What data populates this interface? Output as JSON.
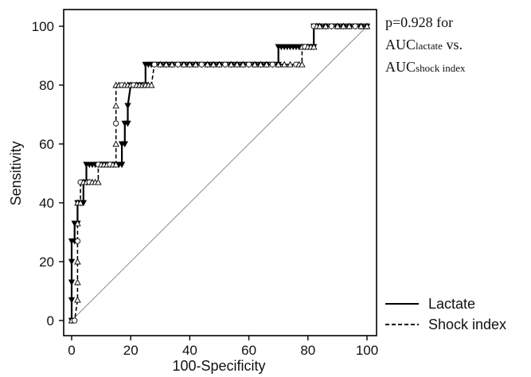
{
  "chart_data": {
    "type": "line",
    "title": "",
    "xlabel": "100-Specificity",
    "ylabel": "Sensitivity",
    "xlim": [
      0,
      100
    ],
    "ylim": [
      0,
      100
    ],
    "x_ticks": [
      "0",
      "20",
      "40",
      "60",
      "80",
      "100"
    ],
    "y_ticks": [
      "0",
      "20",
      "40",
      "60",
      "80",
      "100"
    ],
    "grid": false,
    "legend_position": "bottom-right",
    "annotation": {
      "line1": "p=0.928 for",
      "line2_main": "AUC",
      "line2_sub": "lactate",
      "line2_tail": " vs.",
      "line3_main": "AUC",
      "line3_sub": "shock index"
    },
    "reference_line": {
      "x": [
        0,
        100
      ],
      "y": [
        0,
        100
      ]
    },
    "series": [
      {
        "name": "Lactate",
        "line_style": "solid",
        "marker": "filled-triangle-down",
        "x": [
          0,
          0,
          0,
          0,
          0,
          1,
          1,
          2,
          2,
          3,
          3,
          4,
          4,
          5,
          5,
          6,
          7,
          8,
          9,
          10,
          11,
          12,
          13,
          14,
          15,
          16,
          17,
          17,
          18,
          18,
          19,
          19,
          20,
          21,
          22,
          23,
          24,
          25,
          25,
          26,
          27,
          28,
          30,
          32,
          34,
          36,
          38,
          40,
          42,
          44,
          46,
          48,
          50,
          52,
          54,
          56,
          58,
          60,
          62,
          64,
          66,
          68,
          70,
          70,
          71,
          72,
          73,
          74,
          75,
          76,
          77,
          78,
          79,
          80,
          81,
          82,
          82,
          83,
          84,
          86,
          88,
          90,
          92,
          94,
          96,
          98,
          100
        ],
        "y": [
          0,
          7,
          13,
          20,
          27,
          27,
          33,
          33,
          40,
          40,
          40,
          40,
          47,
          47,
          53,
          53,
          53,
          53,
          53,
          53,
          53,
          53,
          53,
          53,
          53,
          53,
          53,
          60,
          60,
          67,
          67,
          73,
          80,
          80,
          80,
          80,
          80,
          80,
          87,
          87,
          87,
          87,
          87,
          87,
          87,
          87,
          87,
          87,
          87,
          87,
          87,
          87,
          87,
          87,
          87,
          87,
          87,
          87,
          87,
          87,
          87,
          87,
          87,
          93,
          93,
          93,
          93,
          93,
          93,
          93,
          93,
          93,
          93,
          93,
          93,
          93,
          100,
          100,
          100,
          100,
          100,
          100,
          100,
          100,
          100,
          100,
          100
        ]
      },
      {
        "name": "Shock index",
        "line_style": "dashed",
        "marker": "open-triangle-up-and-circle",
        "x": [
          0,
          1,
          2,
          2,
          2,
          2,
          2,
          2,
          3,
          3,
          4,
          5,
          6,
          6,
          7,
          8,
          9,
          9,
          10,
          11,
          12,
          13,
          14,
          15,
          15,
          15,
          15,
          15,
          16,
          17,
          18,
          19,
          20,
          21,
          22,
          23,
          24,
          25,
          25,
          26,
          27,
          28,
          30,
          32,
          34,
          36,
          38,
          40,
          42,
          44,
          46,
          48,
          50,
          52,
          54,
          56,
          58,
          60,
          62,
          64,
          66,
          68,
          70,
          72,
          74,
          76,
          77,
          78,
          78,
          79,
          80,
          81,
          82,
          82,
          83,
          84,
          86,
          88,
          90,
          92,
          94,
          96,
          98,
          100
        ],
        "y": [
          0,
          0,
          7,
          13,
          20,
          27,
          33,
          40,
          40,
          47,
          47,
          47,
          47,
          47,
          47,
          47,
          47,
          53,
          53,
          53,
          53,
          53,
          53,
          53,
          60,
          67,
          73,
          80,
          80,
          80,
          80,
          80,
          80,
          80,
          80,
          80,
          80,
          80,
          80,
          80,
          80,
          87,
          87,
          87,
          87,
          87,
          87,
          87,
          87,
          87,
          87,
          87,
          87,
          87,
          87,
          87,
          87,
          87,
          87,
          87,
          87,
          87,
          87,
          87,
          87,
          87,
          87,
          87,
          93,
          93,
          93,
          93,
          93,
          100,
          100,
          100,
          100,
          100,
          100,
          100,
          100,
          100,
          100,
          100
        ]
      }
    ]
  }
}
